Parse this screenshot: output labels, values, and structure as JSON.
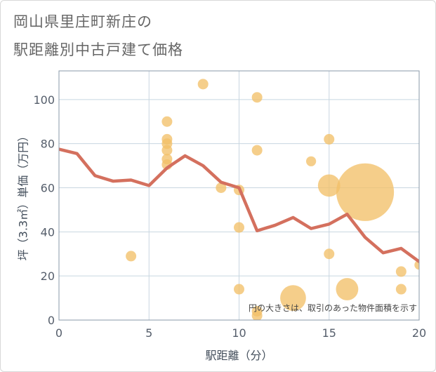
{
  "page": {
    "title_line1": "岡山県里庄町新庄の",
    "title_line2": "駅距離別中古戸建て価格"
  },
  "colors": {
    "line": "#d4705e",
    "bubble": "#f2c069",
    "grid": "#c8d6e0",
    "plot_border": "#8a98a8"
  },
  "chart_data": {
    "type": "scatter",
    "title": "岡山県里庄町新庄の駅距離別中古戸建て価格",
    "xlabel": "駅距離（分）",
    "ylabel": "坪（3.3㎡）単価（万円）",
    "xlim": [
      0,
      20
    ],
    "ylim": [
      0,
      113
    ],
    "xticks": [
      "0",
      "5",
      "10",
      "15",
      "20"
    ],
    "yticks": [
      "0",
      "20",
      "40",
      "60",
      "80",
      "100"
    ],
    "grid": true,
    "note": "円の大きさは、取引のあった物件面積を示す",
    "series": [
      {
        "type": "line",
        "x": [
          0,
          1,
          2,
          3,
          4,
          5,
          6,
          7,
          8,
          9,
          10,
          11,
          12,
          13,
          14,
          15,
          16,
          17,
          18,
          19,
          20
        ],
        "y": [
          77.5,
          75.5,
          65.5,
          63,
          63.5,
          61,
          69,
          74.5,
          70,
          62.5,
          60,
          40.5,
          43,
          46.5,
          41.5,
          43.5,
          48,
          37.5,
          30.5,
          32.5,
          26.5
        ]
      },
      {
        "type": "bubble",
        "points": [
          {
            "x": 4,
            "y": 29,
            "size": 1
          },
          {
            "x": 6,
            "y": 90,
            "size": 1
          },
          {
            "x": 6,
            "y": 82,
            "size": 1
          },
          {
            "x": 6,
            "y": 80,
            "size": 1
          },
          {
            "x": 6,
            "y": 77,
            "size": 1
          },
          {
            "x": 6,
            "y": 73,
            "size": 1
          },
          {
            "x": 6,
            "y": 70.5,
            "size": 1
          },
          {
            "x": 8,
            "y": 107,
            "size": 1
          },
          {
            "x": 9,
            "y": 60,
            "size": 1
          },
          {
            "x": 10,
            "y": 59,
            "size": 1
          },
          {
            "x": 10,
            "y": 42,
            "size": 1
          },
          {
            "x": 10,
            "y": 14,
            "size": 1
          },
          {
            "x": 11,
            "y": 101,
            "size": 1
          },
          {
            "x": 11,
            "y": 77,
            "size": 1
          },
          {
            "x": 11,
            "y": 4,
            "size": 1
          },
          {
            "x": 11,
            "y": 2,
            "size": 1
          },
          {
            "x": 13,
            "y": 10,
            "size": 6
          },
          {
            "x": 14,
            "y": 72,
            "size": 0.9
          },
          {
            "x": 15,
            "y": 82,
            "size": 1
          },
          {
            "x": 15,
            "y": 61,
            "size": 4.5
          },
          {
            "x": 15,
            "y": 30,
            "size": 1
          },
          {
            "x": 16,
            "y": 14,
            "size": 4.5
          },
          {
            "x": 17,
            "y": 58,
            "size": 30
          },
          {
            "x": 19,
            "y": 22,
            "size": 1
          },
          {
            "x": 19,
            "y": 14,
            "size": 1
          },
          {
            "x": 20,
            "y": 25,
            "size": 0.8
          }
        ]
      }
    ]
  }
}
